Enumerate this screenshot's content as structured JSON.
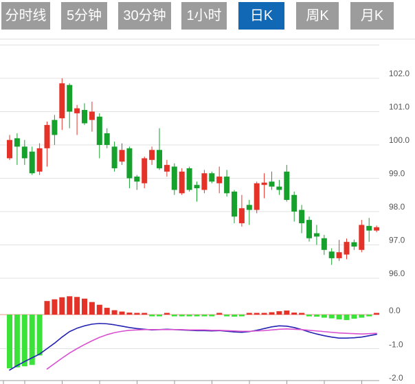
{
  "toolbar": {
    "tabs": [
      {
        "label": "分时线",
        "active": false
      },
      {
        "label": "5分钟",
        "active": false
      },
      {
        "label": "30分钟",
        "active": false
      },
      {
        "label": "1小时",
        "active": false
      },
      {
        "label": "日K",
        "active": true
      },
      {
        "label": "周K",
        "active": false
      },
      {
        "label": "月K",
        "active": false
      }
    ]
  },
  "chart_data": {
    "type": "candlestick",
    "panes": [
      "price-kline",
      "macd-indicator"
    ],
    "price_axis": {
      "ticks": [
        "102.0",
        "101.0",
        "100.0",
        "99.0",
        "98.0",
        "97.0",
        "96.0"
      ],
      "values": [
        102,
        101,
        100,
        99,
        98,
        97,
        96
      ],
      "position": "right"
    },
    "macd_axis": {
      "ticks": [
        "0.0",
        "-1.0",
        "-2.0"
      ],
      "values": [
        0,
        -1,
        -2
      ],
      "position": "right"
    },
    "grid": true,
    "candles": [
      {
        "o": 99.6,
        "c": 100.15,
        "h": 100.3,
        "l": 99.55
      },
      {
        "o": 100.2,
        "c": 99.95,
        "h": 100.35,
        "l": 99.4
      },
      {
        "o": 99.95,
        "c": 99.6,
        "h": 100.15,
        "l": 99.4
      },
      {
        "o": 99.8,
        "c": 99.15,
        "h": 99.95,
        "l": 99.1
      },
      {
        "o": 99.2,
        "c": 99.9,
        "h": 100.05,
        "l": 99.1
      },
      {
        "o": 99.9,
        "c": 100.6,
        "h": 100.7,
        "l": 99.35
      },
      {
        "o": 100.75,
        "c": 100.3,
        "h": 100.9,
        "l": 100.0
      },
      {
        "o": 100.8,
        "c": 101.85,
        "h": 102.0,
        "l": 100.45
      },
      {
        "o": 101.8,
        "c": 101.0,
        "h": 101.85,
        "l": 100.5
      },
      {
        "o": 100.95,
        "c": 101.1,
        "h": 101.2,
        "l": 100.3
      },
      {
        "o": 101.05,
        "c": 100.65,
        "h": 101.25,
        "l": 100.6
      },
      {
        "o": 100.75,
        "c": 101.0,
        "h": 101.3,
        "l": 100.4
      },
      {
        "o": 100.85,
        "c": 100.0,
        "h": 100.95,
        "l": 99.6
      },
      {
        "o": 100.35,
        "c": 100.0,
        "h": 100.5,
        "l": 99.9
      },
      {
        "o": 99.95,
        "c": 99.3,
        "h": 100.1,
        "l": 99.2
      },
      {
        "o": 99.5,
        "c": 99.85,
        "h": 100.05,
        "l": 99.4
      },
      {
        "o": 99.9,
        "c": 99.0,
        "h": 99.95,
        "l": 98.7
      },
      {
        "o": 99.05,
        "c": 98.9,
        "h": 99.1,
        "l": 98.65
      },
      {
        "o": 98.85,
        "c": 99.6,
        "h": 99.65,
        "l": 98.7
      },
      {
        "o": 99.55,
        "c": 99.85,
        "h": 99.95,
        "l": 99.4
      },
      {
        "o": 99.85,
        "c": 99.3,
        "h": 100.5,
        "l": 99.25
      },
      {
        "o": 99.2,
        "c": 99.4,
        "h": 99.55,
        "l": 99.05
      },
      {
        "o": 99.35,
        "c": 98.65,
        "h": 99.45,
        "l": 98.5
      },
      {
        "o": 98.55,
        "c": 99.2,
        "h": 99.3,
        "l": 98.5
      },
      {
        "o": 99.3,
        "c": 98.65,
        "h": 99.35,
        "l": 98.6
      },
      {
        "o": 98.8,
        "c": 98.7,
        "h": 98.9,
        "l": 98.3
      },
      {
        "o": 98.65,
        "c": 99.15,
        "h": 99.25,
        "l": 98.55
      },
      {
        "o": 99.15,
        "c": 98.9,
        "h": 99.2,
        "l": 98.85
      },
      {
        "o": 98.85,
        "c": 99.05,
        "h": 99.35,
        "l": 98.55
      },
      {
        "o": 99.05,
        "c": 98.55,
        "h": 99.25,
        "l": 98.45
      },
      {
        "o": 98.6,
        "c": 97.85,
        "h": 98.65,
        "l": 97.65
      },
      {
        "o": 97.65,
        "c": 98.1,
        "h": 98.5,
        "l": 97.55
      },
      {
        "o": 98.2,
        "c": 98.05,
        "h": 98.35,
        "l": 97.6
      },
      {
        "o": 98.05,
        "c": 98.85,
        "h": 98.9,
        "l": 97.95
      },
      {
        "o": 98.8,
        "c": 98.87,
        "h": 99.15,
        "l": 98.4
      },
      {
        "o": 98.9,
        "c": 98.75,
        "h": 99.2,
        "l": 98.65
      },
      {
        "o": 98.75,
        "c": 98.65,
        "h": 98.95,
        "l": 98.5
      },
      {
        "o": 99.2,
        "c": 98.35,
        "h": 99.4,
        "l": 98.3
      },
      {
        "o": 98.5,
        "c": 98.0,
        "h": 98.6,
        "l": 97.7
      },
      {
        "o": 98.05,
        "c": 97.65,
        "h": 98.2,
        "l": 97.35
      },
      {
        "o": 97.75,
        "c": 97.2,
        "h": 97.85,
        "l": 97.1
      },
      {
        "o": 97.35,
        "c": 97.25,
        "h": 97.6,
        "l": 97.0
      },
      {
        "o": 97.2,
        "c": 96.85,
        "h": 97.3,
        "l": 96.7
      },
      {
        "o": 96.8,
        "c": 96.6,
        "h": 96.9,
        "l": 96.4
      },
      {
        "o": 96.6,
        "c": 96.78,
        "h": 97.15,
        "l": 96.52
      },
      {
        "o": 96.71,
        "c": 97.09,
        "h": 97.19,
        "l": 96.57
      },
      {
        "o": 97.08,
        "c": 96.95,
        "h": 97.16,
        "l": 96.85
      },
      {
        "o": 96.85,
        "c": 97.6,
        "h": 97.75,
        "l": 96.78
      },
      {
        "o": 97.57,
        "c": 97.43,
        "h": 97.81,
        "l": 97.09
      },
      {
        "o": 97.43,
        "c": 97.53,
        "h": 97.58,
        "l": 97.38
      }
    ],
    "macd": {
      "histogram": [
        -1.58,
        -1.55,
        -1.52,
        -1.48,
        -1.2,
        0.4,
        0.45,
        0.51,
        0.54,
        0.52,
        0.47,
        0.37,
        0.29,
        0.2,
        0.13,
        0.09,
        0.06,
        0.04,
        0.03,
        -0.03,
        -0.03,
        0.02,
        -0.03,
        -0.04,
        -0.04,
        -0.05,
        -0.04,
        -0.04,
        0.03,
        -0.05,
        -0.06,
        -0.05,
        0.03,
        0.04,
        0.05,
        0.07,
        0.1,
        0.12,
        0.06,
        0.04,
        -0.04,
        -0.06,
        -0.09,
        -0.11,
        -0.14,
        -0.16,
        -0.12,
        -0.09,
        -0.05,
        0.03
      ],
      "dif": [
        -1.63,
        -1.5,
        -1.38,
        -1.27,
        -1.16,
        -1.0,
        -0.84,
        -0.66,
        -0.5,
        -0.4,
        -0.33,
        -0.28,
        -0.26,
        -0.27,
        -0.3,
        -0.34,
        -0.38,
        -0.41,
        -0.43,
        -0.45,
        -0.44,
        -0.43,
        -0.44,
        -0.45,
        -0.46,
        -0.47,
        -0.47,
        -0.48,
        -0.47,
        -0.49,
        -0.51,
        -0.52,
        -0.5,
        -0.46,
        -0.41,
        -0.36,
        -0.33,
        -0.34,
        -0.38,
        -0.44,
        -0.51,
        -0.57,
        -0.62,
        -0.66,
        -0.69,
        -0.69,
        -0.68,
        -0.66,
        -0.62,
        -0.58
      ],
      "dea": [
        null,
        null,
        null,
        null,
        null,
        -1.6,
        -1.44,
        -1.28,
        -1.13,
        -1.0,
        -0.88,
        -0.77,
        -0.67,
        -0.59,
        -0.53,
        -0.49,
        -0.46,
        -0.45,
        -0.44,
        -0.44,
        -0.44,
        -0.44,
        -0.44,
        -0.44,
        -0.45,
        -0.45,
        -0.45,
        -0.46,
        -0.46,
        -0.47,
        -0.48,
        -0.49,
        -0.49,
        -0.48,
        -0.47,
        -0.45,
        -0.43,
        -0.42,
        -0.43,
        -0.44,
        -0.46,
        -0.48,
        -0.5,
        -0.52,
        -0.54,
        -0.55,
        -0.56,
        -0.57,
        -0.56,
        -0.55
      ]
    },
    "colors": {
      "candle_up": "#e53228",
      "candle_down": "#16a02c",
      "hist_up": "#e53228",
      "hist_down": "#3ae23a",
      "dif_line": "#2121b1",
      "dea_line": "#d84fd0",
      "grid": "#e2e2e2",
      "zero_line": "#f0948c",
      "axis": "#999999",
      "label": "#555555",
      "tab_active_bg": "#1168b5",
      "tab_inactive_bg": "#9c9c9c",
      "tab_text": "#ffffff"
    }
  }
}
